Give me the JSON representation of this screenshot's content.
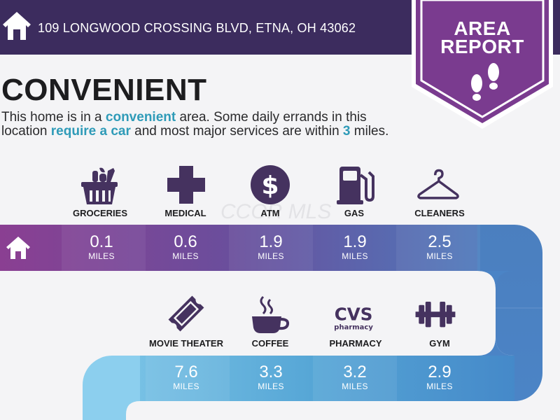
{
  "header": {
    "address": "109 LONGWOOD CROSSING BLVD, ETNA, OH 43062",
    "home_icon": "home-icon"
  },
  "badge": {
    "line1": "AREA",
    "line2": "REPORT",
    "icon": "footprints-icon"
  },
  "watermark": "CCOR MLS",
  "title": "CONVENIENT",
  "description": {
    "p1": "This home is in a ",
    "h1": "convenient",
    "p2": " area. Some daily errands in this location ",
    "h2": "require a car",
    "p3": " and most major services are within ",
    "h3": "3",
    "p4": " miles."
  },
  "colors": {
    "header": "#3c2c5e",
    "badge": "#7a3b8f",
    "highlight": "#2f9bb8",
    "icon": "#45325f"
  },
  "row1": [
    {
      "label": "GROCERIES",
      "value": "0.1",
      "unit": "MILES",
      "icon": "grocery-basket-icon"
    },
    {
      "label": "MEDICAL",
      "value": "0.6",
      "unit": "MILES",
      "icon": "medical-cross-icon"
    },
    {
      "label": "ATM",
      "value": "1.9",
      "unit": "MILES",
      "icon": "dollar-coin-icon"
    },
    {
      "label": "GAS",
      "value": "1.9",
      "unit": "MILES",
      "icon": "gas-pump-icon"
    },
    {
      "label": "CLEANERS",
      "value": "2.5",
      "unit": "MILES",
      "icon": "hanger-icon"
    }
  ],
  "row2": [
    {
      "label": "MOVIE THEATER",
      "value": "7.6",
      "unit": "MILES",
      "icon": "ticket-icon"
    },
    {
      "label": "COFFEE",
      "value": "3.3",
      "unit": "MILES",
      "icon": "coffee-cup-icon"
    },
    {
      "label": "PHARMACY",
      "value": "3.2",
      "unit": "MILES",
      "icon": "cvs-pharmacy-logo",
      "logo_text": "CVS",
      "logo_sub": "pharmacy"
    },
    {
      "label": "GYM",
      "value": "2.9",
      "unit": "MILES",
      "icon": "dumbbell-icon"
    }
  ]
}
